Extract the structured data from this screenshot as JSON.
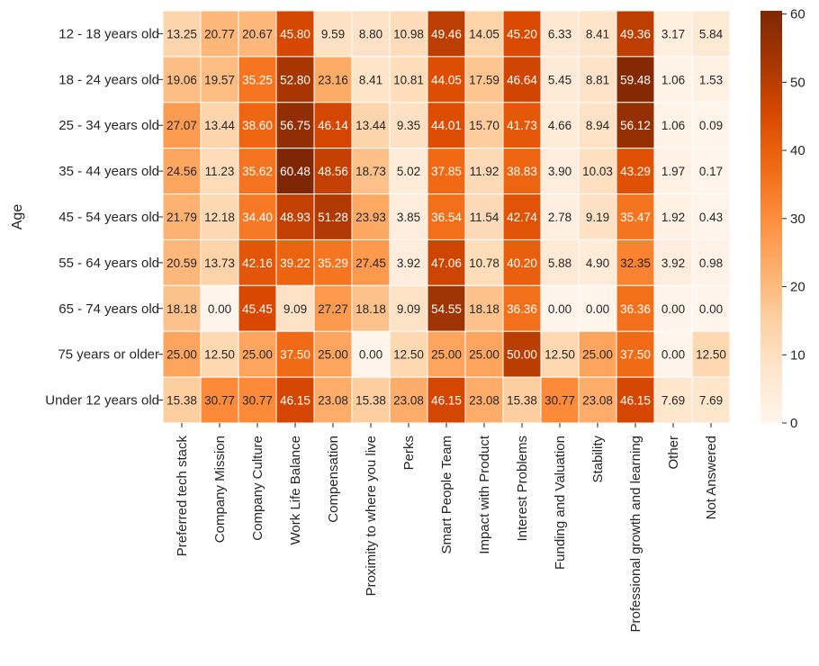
{
  "chart_data": {
    "type": "heatmap",
    "ylabel": "Age",
    "xlabel": "",
    "rows": [
      "12 - 18 years old",
      "18 - 24 years old",
      "25 - 34 years old",
      "35 - 44 years old",
      "45 - 54 years old",
      "55 - 64 years old",
      "65 - 74 years old",
      "75 years or older",
      "Under 12 years old"
    ],
    "columns": [
      "Preferred tech stack",
      "Company Mission",
      "Company Culture",
      "Work Life Balance",
      "Compensation",
      "Proximity to where you live",
      "Perks",
      "Smart People Team",
      "Impact with Product",
      "Interest Problems",
      "Funding and Valuation",
      "Stability",
      "Professional growth and learning",
      "Other",
      "Not Answered"
    ],
    "values": [
      [
        13.25,
        20.77,
        20.67,
        45.8,
        9.59,
        8.8,
        10.98,
        49.46,
        14.05,
        45.2,
        6.33,
        8.41,
        49.36,
        3.17,
        5.84
      ],
      [
        19.06,
        19.57,
        35.25,
        52.8,
        23.16,
        8.41,
        10.81,
        44.05,
        17.59,
        46.64,
        5.45,
        8.81,
        59.48,
        1.06,
        1.53
      ],
      [
        27.07,
        13.44,
        38.6,
        56.75,
        46.14,
        13.44,
        9.35,
        44.01,
        15.7,
        41.73,
        4.66,
        8.94,
        56.12,
        1.06,
        0.09
      ],
      [
        24.56,
        11.23,
        35.62,
        60.48,
        48.56,
        18.73,
        5.02,
        37.85,
        11.92,
        38.83,
        3.9,
        10.03,
        43.29,
        1.97,
        0.17
      ],
      [
        21.79,
        12.18,
        34.4,
        48.93,
        51.28,
        23.93,
        3.85,
        36.54,
        11.54,
        42.74,
        2.78,
        9.19,
        35.47,
        1.92,
        0.43
      ],
      [
        20.59,
        13.73,
        42.16,
        39.22,
        35.29,
        27.45,
        3.92,
        47.06,
        10.78,
        40.2,
        5.88,
        4.9,
        32.35,
        3.92,
        0.98
      ],
      [
        18.18,
        0.0,
        45.45,
        9.09,
        27.27,
        18.18,
        9.09,
        54.55,
        18.18,
        36.36,
        0.0,
        0.0,
        36.36,
        0.0,
        0.0
      ],
      [
        25.0,
        12.5,
        25.0,
        37.5,
        25.0,
        0.0,
        12.5,
        25.0,
        25.0,
        50.0,
        12.5,
        25.0,
        37.5,
        0.0,
        12.5
      ],
      [
        15.38,
        30.77,
        30.77,
        46.15,
        23.08,
        15.38,
        23.08,
        46.15,
        23.08,
        15.38,
        30.77,
        23.08,
        46.15,
        7.69,
        7.69
      ]
    ],
    "vmin": 0,
    "vmax": 60.48,
    "colorbar_ticks": [
      0,
      10,
      20,
      30,
      40,
      50,
      60
    ],
    "colormap": "Oranges",
    "colorbar_location": "right",
    "annotation_format": "2 decimals"
  }
}
